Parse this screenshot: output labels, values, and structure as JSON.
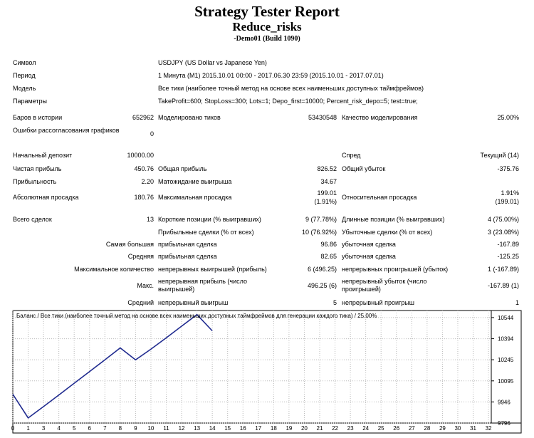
{
  "header": {
    "title": "Strategy Tester Report",
    "subtitle": "Reduce_risks",
    "build": "-Demo01 (Build 1090)"
  },
  "info": {
    "symbol_label": "Символ",
    "symbol_value": "USDJPY (US Dollar vs Japanese Yen)",
    "period_label": "Период",
    "period_value": "1 Минута (M1) 2015.10.01 00:00 - 2017.06.30 23:59 (2015.10.01 - 2017.07.01)",
    "model_label": "Модель",
    "model_value": "Все тики (наиболее точный метод на основе всех наименьших доступных таймфреймов)",
    "params_label": "Параметры",
    "params_value": "TakeProfit=600; StopLoss=300; Lots=1; Depo_first=10000; Percent_risk_depo=5; test=true;"
  },
  "stats": {
    "bars_label": "Баров в истории",
    "bars_value": "652962",
    "ticks_label": "Моделировано тиков",
    "ticks_value": "53430548",
    "quality_label": "Качество моделирования",
    "quality_value": "25.00%",
    "errors_label": "Ошибки рассогласования графиков",
    "errors_value": "0",
    "deposit_label": "Начальный депозит",
    "deposit_value": "10000.00",
    "spread_label": "Спред",
    "spread_value": "Текущий (14)",
    "net_label": "Чистая прибыль",
    "net_value": "450.76",
    "gross_profit_label": "Общая прибыль",
    "gross_profit_value": "826.52",
    "gross_loss_label": "Общий убыток",
    "gross_loss_value": "-375.76",
    "pf_label": "Прибыльность",
    "pf_value": "2.20",
    "payoff_label": "Матожидание выигрыша",
    "payoff_value": "34.67",
    "abs_dd_label": "Абсолютная просадка",
    "abs_dd_value": "180.76",
    "max_dd_label": "Максимальная просадка",
    "max_dd_value1": "199.01",
    "max_dd_value2": "(1.91%)",
    "rel_dd_label": "Относительная просадка",
    "rel_dd_value1": "1.91%",
    "rel_dd_value2": "(199.01)",
    "total_label": "Всего сделок",
    "total_value": "13",
    "short_label": "Короткие позиции (% выигравших)",
    "short_value": "9 (77.78%)",
    "long_label": "Длинные позиции (% выигравших)",
    "long_value": "4 (75.00%)",
    "profit_trades_label": "Прибыльные сделки (% от всех)",
    "profit_trades_value": "10 (76.92%)",
    "loss_trades_label": "Убыточные сделки (% от всех)",
    "loss_trades_value": "3 (23.08%)",
    "largest_label": "Самая большая",
    "largest_profit_label": "прибыльная сделка",
    "largest_profit_value": "96.86",
    "largest_loss_label": "убыточная сделка",
    "largest_loss_value": "-167.89",
    "average_label": "Средняя",
    "average_profit_label": "прибыльная сделка",
    "average_profit_value": "82.65",
    "average_loss_label": "убыточная сделка",
    "average_loss_value": "-125.25",
    "maxcount_label": "Максимальное количество",
    "maxcount_wins_label": "непрерывных выигрышей (прибыль)",
    "maxcount_wins_value": "6 (496.25)",
    "maxcount_losses_label": "непрерывных проигрышей (убыток)",
    "maxcount_losses_value": "1 (-167.89)",
    "max_label": "Макс.",
    "max_profit_label": "непрерывная прибыль (число выигрышей)",
    "max_profit_value": "496.25 (6)",
    "max_loss_label": "непрерывный убыток (число проигрышей)",
    "max_loss_value": "-167.89 (1)",
    "avg_label": "Средний",
    "avg_wins_label": "непрерывный выигрыш",
    "avg_wins_value": "5",
    "avg_losses_label": "непрерывный проигрыш",
    "avg_losses_value": "1"
  },
  "chart_data": {
    "type": "line",
    "title": "Баланс / Все тики (наиболее точный метод на основе всех наименьших доступных таймфреймов для генерации каждого тика) / 25.00%",
    "xlabel": "",
    "ylabel": "",
    "x_ticks": [
      "0",
      "1",
      "3",
      "4",
      "5",
      "6",
      "7",
      "8",
      "9",
      "10",
      "11",
      "12",
      "13",
      "14",
      "15",
      "16",
      "17",
      "18",
      "19",
      "20",
      "21",
      "22",
      "23",
      "24",
      "25",
      "26",
      "27",
      "28",
      "29",
      "30",
      "31",
      "32"
    ],
    "y_ticks": [
      "10544",
      "10394",
      "10245",
      "10095",
      "9946",
      "9796"
    ],
    "ylim": [
      9796,
      10594
    ],
    "xlim": [
      0,
      32
    ],
    "grid": true,
    "line_color": "#1f2a8f",
    "series": [
      {
        "name": "",
        "x": [
          0,
          1,
          2,
          3,
          4,
          5,
          6,
          7,
          8,
          9,
          10,
          11,
          12,
          13
        ],
        "y": [
          10000,
          9832,
          9913,
          9995,
          10078,
          10161,
          10244,
          10329,
          10244,
          10320,
          10400,
          10483,
          10565,
          10450
        ]
      }
    ]
  }
}
